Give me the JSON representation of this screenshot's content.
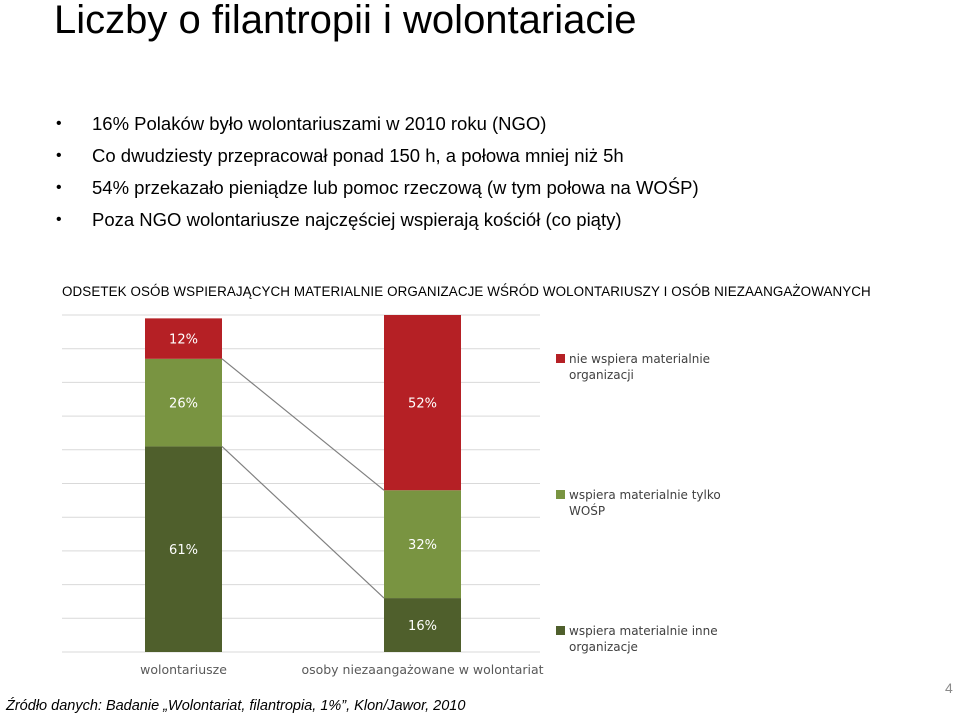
{
  "slide": {
    "title": "Liczby o filantropii i wolontariacie",
    "bullets": [
      "16% Polaków było wolontariuszami w 2010 roku (NGO)",
      "Co dwudziesty przepracował ponad 150 h, a połowa mniej niż 5h",
      "54% przekazało pieniądze lub pomoc rzeczową (w tym połowa na WOŚP)",
      "Poza NGO wolontariusze najczęściej wspierają kościół (co piąty)"
    ],
    "bullet_glyph": "•",
    "chart_heading": "ODSETEK OSÓB WSPIERAJĄCYCH MATERIALNIE ORGANIZACJE WŚRÓD WOLONTARIUSZY I OSÓB NIEZAANGAŻOWANYCH",
    "source": "Źródło danych: Badanie „Wolontariat, filantropia, 1%”, Klon/Jawor, 2010",
    "page_number": "4"
  },
  "chart_data": {
    "type": "bar",
    "stacked": true,
    "percent": true,
    "categories": [
      "wolontariusze",
      "osoby niezaangażowane w wolontariat"
    ],
    "series": [
      {
        "name": "wspiera materialnie inne organizacje",
        "values": [
          61,
          16
        ],
        "labels": [
          "61%",
          "16%"
        ],
        "color": "#4f5f2c"
      },
      {
        "name": "wspiera materialnie tylko WOŚP",
        "values": [
          26,
          32
        ],
        "labels": [
          "26%",
          "32%"
        ],
        "color": "#799441"
      },
      {
        "name": "nie wspiera materialnie organizacji",
        "values": [
          12,
          52
        ],
        "labels": [
          "12%",
          "52%"
        ],
        "color": "#b52025"
      }
    ],
    "legend_order": [
      2,
      1,
      0
    ],
    "ylim": [
      0,
      100
    ],
    "grid": true,
    "legend_position": "right",
    "connector_color": "#808080",
    "gridline_color": "#d9d9d9",
    "label_color": "#ffffff"
  }
}
